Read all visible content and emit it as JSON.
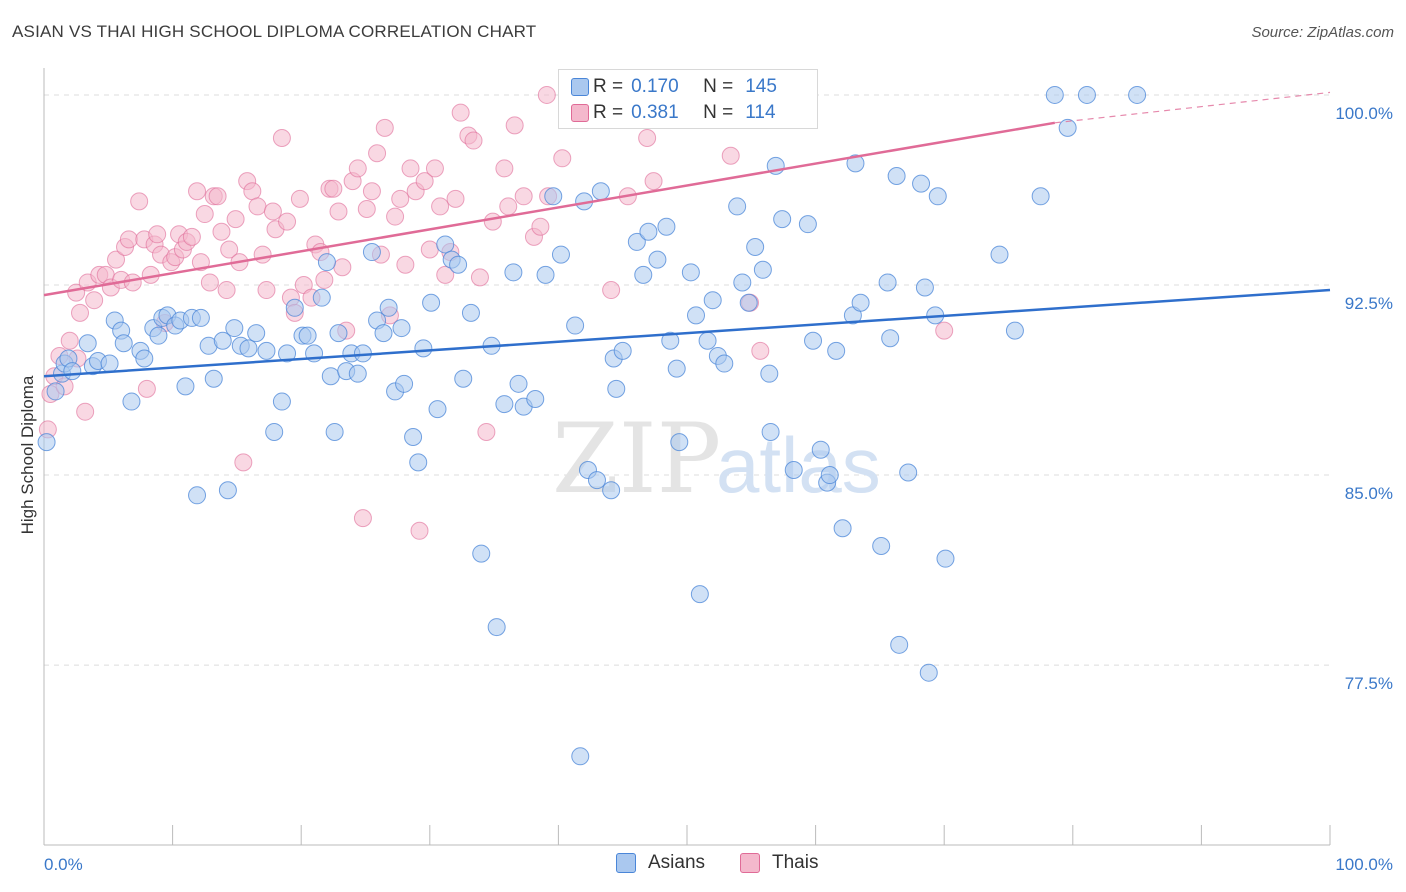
{
  "title": "ASIAN VS THAI HIGH SCHOOL DIPLOMA CORRELATION CHART",
  "source": "Source: ZipAtlas.com",
  "watermark": {
    "zip": "ZIP",
    "atlas": "atlas"
  },
  "colors": {
    "asian": "#4a86d8",
    "asian_fill": "#aac8ef",
    "thai": "#e06b97",
    "thai_fill": "#f4b8cc",
    "tick_label": "#3a78c9",
    "grid": "#dcdcdc"
  },
  "legend": {
    "asian": {
      "r_label": "R =",
      "r_value": "0.170",
      "n_label": "N =",
      "n_value": "145"
    },
    "thai": {
      "r_label": "R =",
      "r_value": "0.381",
      "n_label": "N =",
      "n_value": "114"
    }
  },
  "bottom_legend": {
    "asian": "Asians",
    "thai": "Thais"
  },
  "chart_data": {
    "type": "scatter",
    "title": "ASIAN VS THAI HIGH SCHOOL DIPLOMA CORRELATION CHART",
    "xlabel": "",
    "ylabel": "High School Diploma",
    "xlim": [
      0,
      100
    ],
    "ylim": [
      70.4,
      101.3
    ],
    "x_tick_labels": [
      "0.0%",
      "100.0%"
    ],
    "y_ticks": [
      77.5,
      85.0,
      92.5,
      100.0
    ],
    "y_tick_labels": [
      "77.5%",
      "85.0%",
      "92.5%",
      "100.0%"
    ],
    "grid": "horizontal dashed",
    "legend_position": "top-center",
    "series": [
      {
        "name": "Asians",
        "r": 0.17,
        "n": 145,
        "trend": {
          "x": [
            0,
            100
          ],
          "y": [
            88.9,
            92.3
          ]
        },
        "points": [
          [
            0.2,
            86.3
          ],
          [
            0.9,
            88.3
          ],
          [
            1.4,
            89.0
          ],
          [
            1.6,
            89.4
          ],
          [
            1.9,
            89.6
          ],
          [
            2.2,
            89.1
          ],
          [
            3.4,
            90.2
          ],
          [
            3.8,
            89.3
          ],
          [
            4.2,
            89.5
          ],
          [
            5.1,
            89.4
          ],
          [
            5.5,
            91.1
          ],
          [
            6.0,
            90.7
          ],
          [
            6.2,
            90.2
          ],
          [
            6.8,
            87.9
          ],
          [
            7.5,
            89.9
          ],
          [
            7.8,
            89.6
          ],
          [
            8.5,
            90.8
          ],
          [
            8.9,
            90.5
          ],
          [
            9.2,
            91.2
          ],
          [
            9.6,
            91.3
          ],
          [
            10.2,
            90.9
          ],
          [
            10.6,
            91.1
          ],
          [
            11.0,
            88.5
          ],
          [
            11.5,
            91.2
          ],
          [
            11.9,
            84.2
          ],
          [
            12.2,
            91.2
          ],
          [
            12.8,
            90.1
          ],
          [
            13.2,
            88.8
          ],
          [
            13.9,
            90.3
          ],
          [
            14.3,
            84.4
          ],
          [
            14.8,
            90.8
          ],
          [
            15.3,
            90.1
          ],
          [
            15.9,
            90.0
          ],
          [
            16.5,
            90.6
          ],
          [
            17.3,
            89.9
          ],
          [
            17.9,
            86.7
          ],
          [
            18.5,
            87.9
          ],
          [
            18.9,
            89.8
          ],
          [
            19.5,
            91.6
          ],
          [
            20.1,
            90.5
          ],
          [
            20.5,
            90.5
          ],
          [
            21.0,
            89.8
          ],
          [
            21.6,
            92.0
          ],
          [
            22.0,
            93.4
          ],
          [
            22.3,
            88.9
          ],
          [
            22.6,
            86.7
          ],
          [
            22.9,
            90.6
          ],
          [
            23.5,
            89.1
          ],
          [
            23.9,
            89.8
          ],
          [
            24.4,
            89.0
          ],
          [
            24.8,
            89.8
          ],
          [
            25.5,
            93.8
          ],
          [
            25.9,
            91.1
          ],
          [
            26.4,
            90.6
          ],
          [
            26.8,
            91.6
          ],
          [
            27.3,
            88.3
          ],
          [
            27.8,
            90.8
          ],
          [
            28.0,
            88.6
          ],
          [
            28.7,
            86.5
          ],
          [
            29.1,
            85.5
          ],
          [
            29.5,
            90.0
          ],
          [
            30.1,
            91.8
          ],
          [
            30.6,
            87.6
          ],
          [
            31.2,
            94.1
          ],
          [
            31.7,
            93.5
          ],
          [
            32.2,
            93.3
          ],
          [
            32.6,
            88.8
          ],
          [
            33.2,
            91.4
          ],
          [
            34.0,
            81.9
          ],
          [
            34.8,
            90.1
          ],
          [
            35.2,
            79.0
          ],
          [
            35.8,
            87.8
          ],
          [
            36.5,
            93.0
          ],
          [
            36.9,
            88.6
          ],
          [
            37.3,
            87.7
          ],
          [
            38.2,
            88.0
          ],
          [
            39.0,
            92.9
          ],
          [
            39.6,
            96.0
          ],
          [
            40.2,
            93.7
          ],
          [
            41.3,
            90.9
          ],
          [
            41.7,
            73.9
          ],
          [
            42.0,
            95.8
          ],
          [
            42.3,
            85.2
          ],
          [
            43.0,
            84.8
          ],
          [
            43.3,
            96.2
          ],
          [
            44.1,
            84.4
          ],
          [
            44.3,
            89.6
          ],
          [
            44.5,
            88.4
          ],
          [
            45.0,
            89.9
          ],
          [
            46.1,
            94.2
          ],
          [
            46.6,
            92.9
          ],
          [
            47.0,
            94.6
          ],
          [
            47.7,
            93.5
          ],
          [
            48.4,
            94.8
          ],
          [
            48.7,
            90.3
          ],
          [
            49.2,
            89.2
          ],
          [
            49.4,
            86.3
          ],
          [
            50.3,
            93.0
          ],
          [
            50.7,
            91.3
          ],
          [
            51.0,
            80.3
          ],
          [
            51.6,
            90.3
          ],
          [
            52.0,
            91.9
          ],
          [
            52.4,
            89.7
          ],
          [
            52.9,
            89.4
          ],
          [
            53.9,
            95.6
          ],
          [
            54.3,
            92.6
          ],
          [
            54.8,
            91.8
          ],
          [
            55.3,
            94.0
          ],
          [
            55.9,
            93.1
          ],
          [
            56.4,
            89.0
          ],
          [
            56.5,
            86.7
          ],
          [
            56.9,
            97.2
          ],
          [
            57.4,
            95.1
          ],
          [
            58.3,
            85.2
          ],
          [
            59.4,
            94.9
          ],
          [
            59.8,
            90.3
          ],
          [
            60.4,
            86.0
          ],
          [
            60.9,
            84.7
          ],
          [
            61.1,
            85.0
          ],
          [
            61.6,
            89.9
          ],
          [
            62.1,
            82.9
          ],
          [
            62.9,
            91.3
          ],
          [
            63.1,
            97.3
          ],
          [
            63.5,
            91.8
          ],
          [
            65.1,
            82.2
          ],
          [
            65.6,
            92.6
          ],
          [
            65.8,
            90.4
          ],
          [
            66.3,
            96.8
          ],
          [
            66.5,
            78.3
          ],
          [
            67.2,
            85.1
          ],
          [
            68.2,
            96.5
          ],
          [
            68.5,
            92.4
          ],
          [
            68.8,
            77.2
          ],
          [
            69.3,
            91.3
          ],
          [
            69.5,
            96.0
          ],
          [
            70.1,
            81.7
          ],
          [
            74.3,
            93.7
          ],
          [
            75.5,
            90.7
          ],
          [
            77.5,
            96.0
          ],
          [
            78.6,
            100.0
          ],
          [
            79.6,
            98.7
          ],
          [
            81.1,
            100.0
          ],
          [
            85.0,
            100.0
          ]
        ]
      },
      {
        "name": "Thais",
        "r": 0.381,
        "n": 114,
        "trend": {
          "x": [
            0,
            78.6
          ],
          "y": [
            92.1,
            98.9
          ]
        },
        "trend_extension": {
          "x": [
            78.6,
            100
          ],
          "y": [
            98.9,
            100.1
          ]
        },
        "points": [
          [
            0.3,
            86.8
          ],
          [
            0.5,
            88.2
          ],
          [
            0.8,
            88.9
          ],
          [
            1.2,
            89.7
          ],
          [
            1.6,
            88.5
          ],
          [
            2.0,
            90.3
          ],
          [
            2.6,
            89.6
          ],
          [
            2.5,
            92.2
          ],
          [
            2.8,
            91.4
          ],
          [
            3.2,
            87.5
          ],
          [
            3.4,
            92.6
          ],
          [
            3.9,
            91.9
          ],
          [
            4.3,
            92.9
          ],
          [
            4.8,
            92.9
          ],
          [
            5.2,
            92.4
          ],
          [
            5.6,
            93.5
          ],
          [
            6.0,
            92.7
          ],
          [
            6.3,
            94.0
          ],
          [
            6.6,
            94.3
          ],
          [
            6.9,
            92.6
          ],
          [
            7.4,
            95.8
          ],
          [
            7.8,
            94.3
          ],
          [
            8.0,
            88.4
          ],
          [
            8.3,
            92.9
          ],
          [
            8.6,
            94.1
          ],
          [
            8.8,
            94.5
          ],
          [
            9.1,
            93.7
          ],
          [
            9.4,
            91.0
          ],
          [
            9.9,
            93.4
          ],
          [
            10.2,
            93.6
          ],
          [
            10.5,
            94.5
          ],
          [
            10.8,
            93.9
          ],
          [
            11.1,
            94.2
          ],
          [
            11.5,
            94.4
          ],
          [
            11.9,
            96.2
          ],
          [
            12.2,
            93.4
          ],
          [
            12.5,
            95.3
          ],
          [
            12.9,
            92.6
          ],
          [
            13.2,
            96.0
          ],
          [
            13.5,
            96.0
          ],
          [
            13.8,
            94.6
          ],
          [
            14.2,
            92.3
          ],
          [
            14.4,
            93.9
          ],
          [
            14.9,
            95.1
          ],
          [
            15.2,
            93.4
          ],
          [
            15.5,
            85.5
          ],
          [
            15.8,
            96.6
          ],
          [
            16.2,
            96.2
          ],
          [
            16.6,
            95.6
          ],
          [
            17.0,
            93.7
          ],
          [
            17.3,
            92.3
          ],
          [
            17.8,
            95.4
          ],
          [
            18.0,
            94.7
          ],
          [
            18.5,
            98.3
          ],
          [
            18.9,
            95.0
          ],
          [
            19.2,
            92.0
          ],
          [
            19.5,
            91.4
          ],
          [
            19.9,
            95.9
          ],
          [
            20.2,
            92.5
          ],
          [
            20.8,
            92.0
          ],
          [
            21.1,
            94.1
          ],
          [
            21.5,
            93.8
          ],
          [
            21.8,
            92.7
          ],
          [
            22.2,
            96.3
          ],
          [
            22.5,
            96.3
          ],
          [
            22.9,
            95.4
          ],
          [
            23.2,
            93.2
          ],
          [
            23.5,
            90.7
          ],
          [
            24.0,
            96.6
          ],
          [
            24.4,
            97.1
          ],
          [
            24.8,
            83.3
          ],
          [
            25.1,
            95.5
          ],
          [
            25.5,
            96.2
          ],
          [
            25.9,
            97.7
          ],
          [
            26.2,
            93.7
          ],
          [
            26.5,
            98.7
          ],
          [
            26.9,
            91.3
          ],
          [
            27.3,
            95.2
          ],
          [
            27.7,
            95.9
          ],
          [
            28.1,
            93.3
          ],
          [
            28.5,
            97.1
          ],
          [
            28.9,
            96.2
          ],
          [
            29.2,
            82.8
          ],
          [
            29.6,
            96.6
          ],
          [
            30.0,
            93.9
          ],
          [
            30.4,
            97.1
          ],
          [
            30.8,
            95.6
          ],
          [
            31.2,
            92.9
          ],
          [
            31.6,
            93.8
          ],
          [
            32.0,
            95.9
          ],
          [
            32.4,
            99.3
          ],
          [
            33.0,
            98.4
          ],
          [
            33.4,
            98.2
          ],
          [
            33.9,
            92.8
          ],
          [
            34.4,
            86.7
          ],
          [
            34.9,
            95.0
          ],
          [
            35.8,
            97.1
          ],
          [
            36.1,
            95.6
          ],
          [
            36.6,
            98.8
          ],
          [
            37.3,
            96.0
          ],
          [
            38.1,
            94.4
          ],
          [
            38.6,
            94.8
          ],
          [
            39.2,
            96.0
          ],
          [
            39.1,
            100.0
          ],
          [
            40.3,
            97.5
          ],
          [
            42.3,
            100.0
          ],
          [
            44.1,
            92.3
          ],
          [
            45.4,
            96.0
          ],
          [
            46.9,
            98.3
          ],
          [
            47.4,
            96.6
          ],
          [
            53.4,
            97.6
          ],
          [
            54.9,
            91.8
          ],
          [
            55.7,
            89.9
          ],
          [
            70.0,
            90.7
          ]
        ]
      }
    ]
  }
}
